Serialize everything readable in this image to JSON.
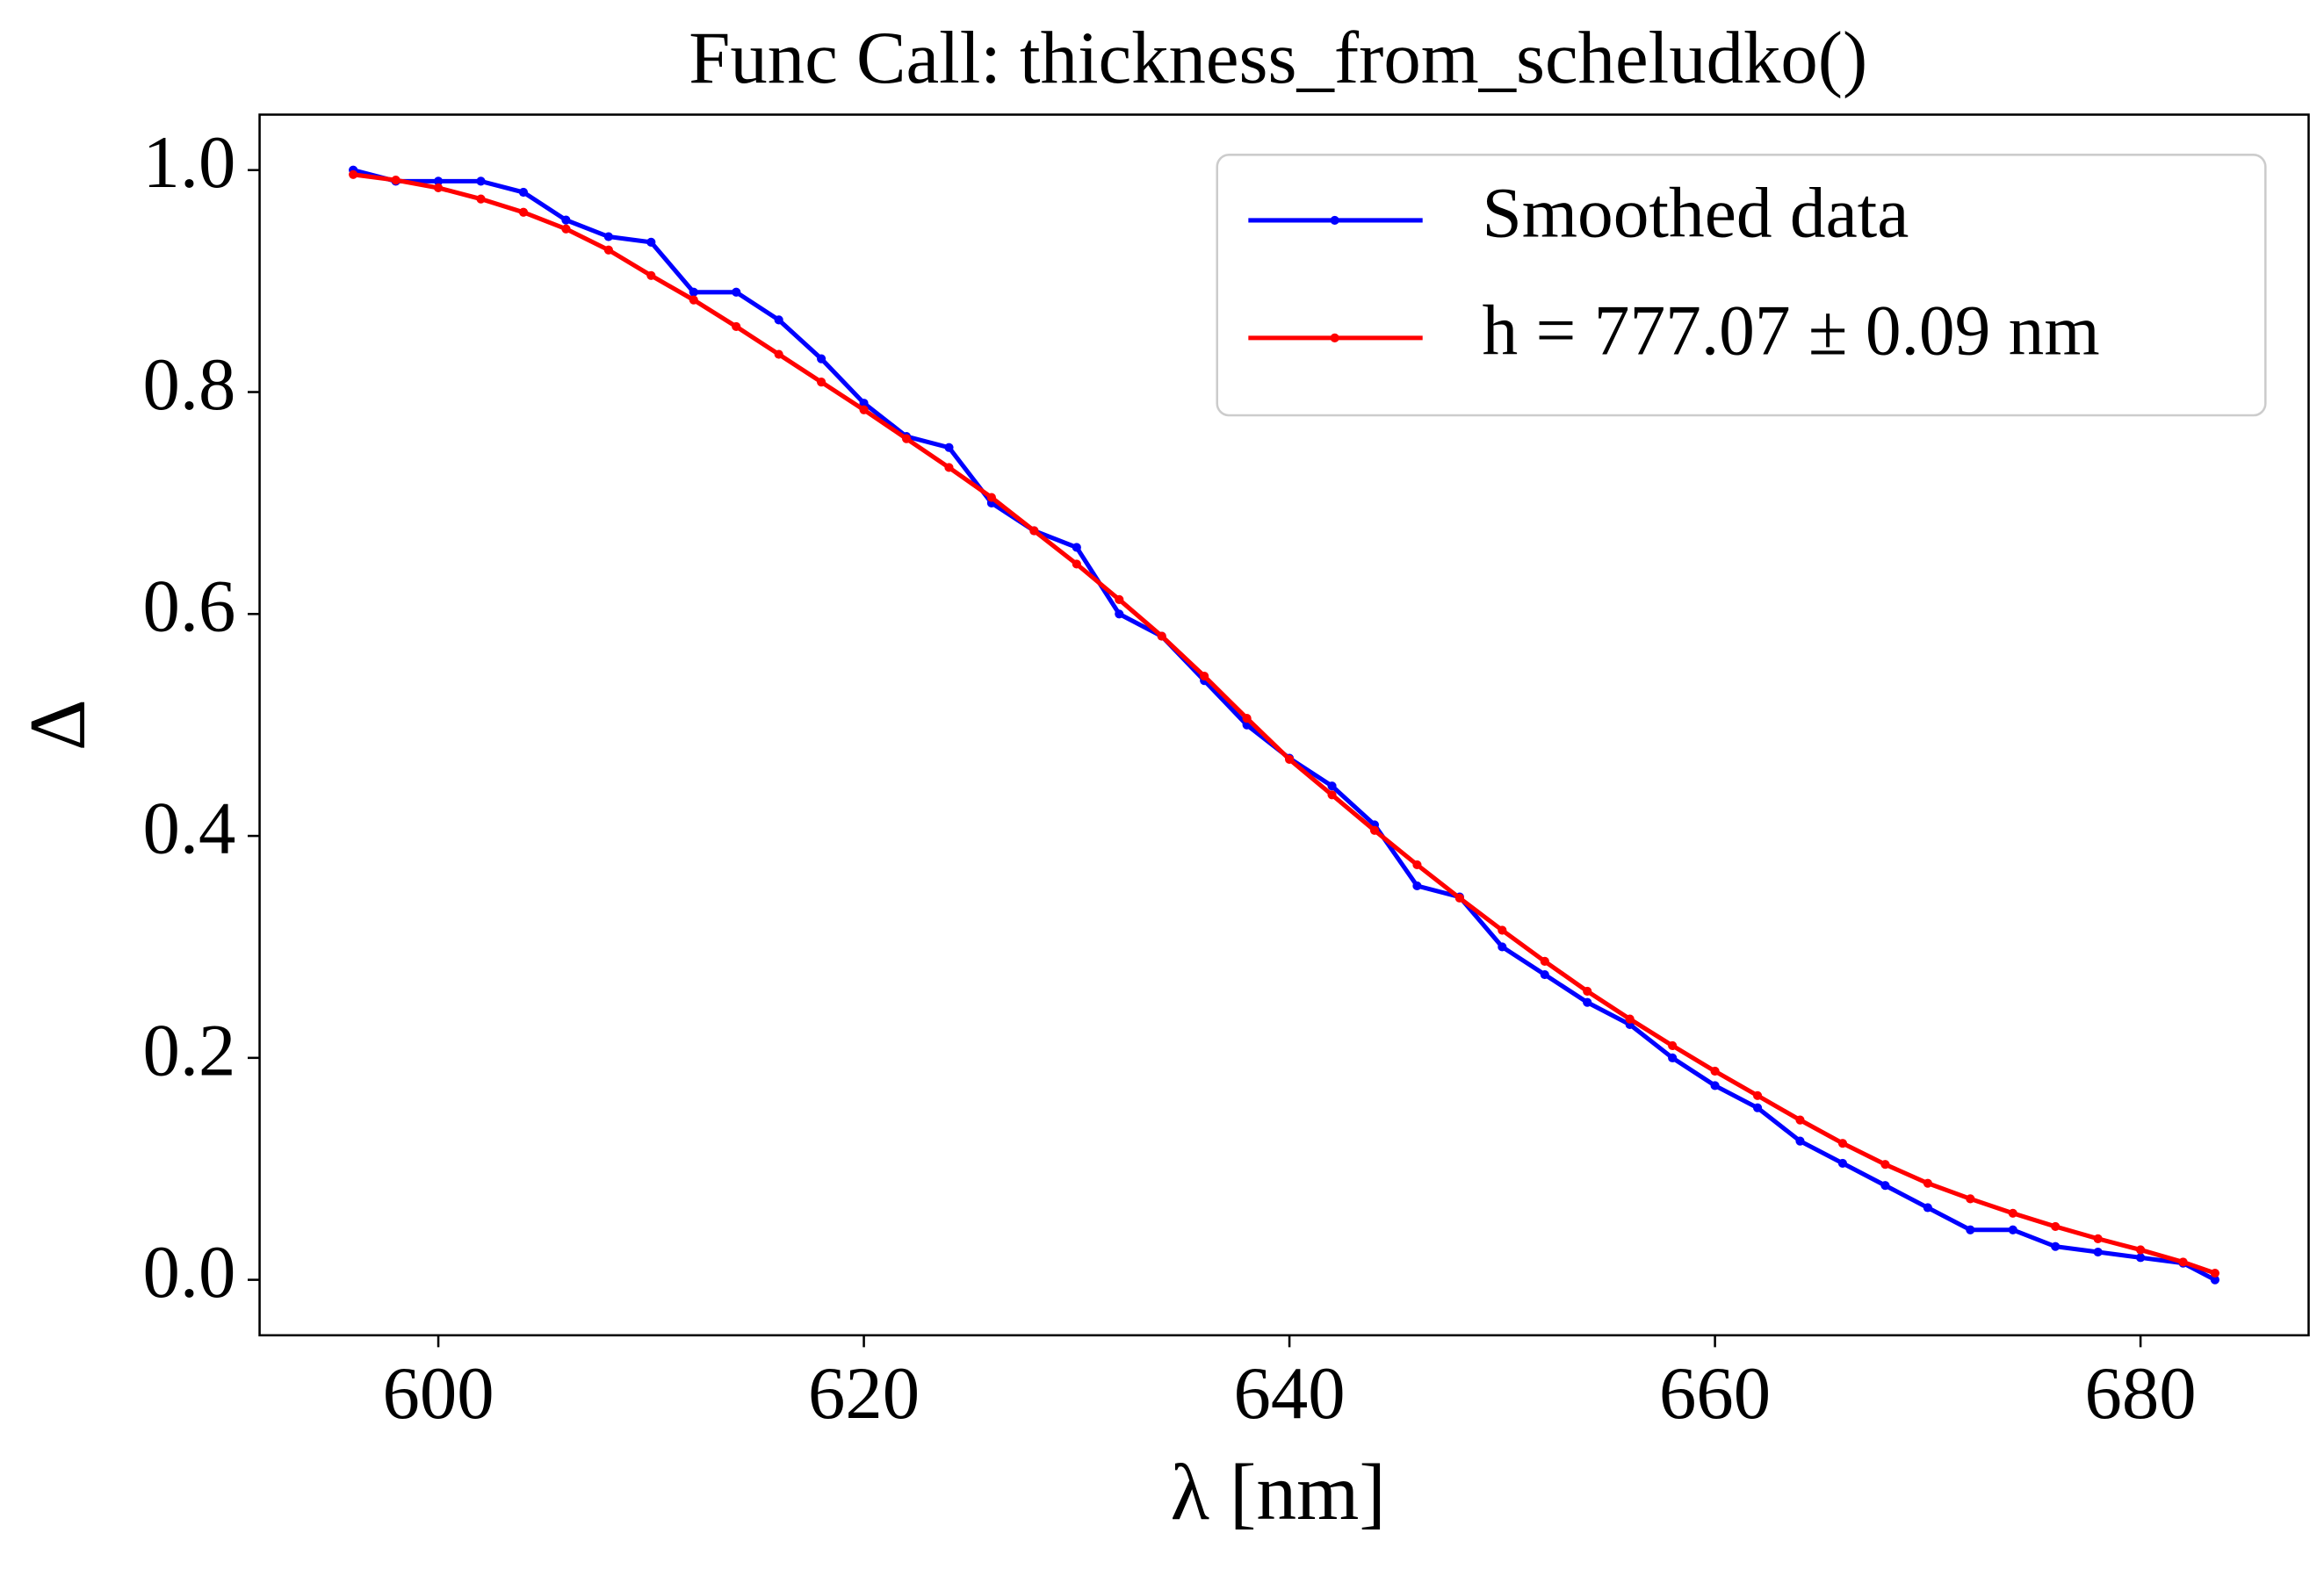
{
  "chart_data": {
    "type": "line",
    "title": "Func Call: thickness_from_scheludko()",
    "x_label": "λ [nm]",
    "y_label": "Δ",
    "x": [
      596,
      598,
      600,
      602,
      604,
      606,
      608,
      610,
      612,
      614,
      616,
      618,
      620,
      622,
      624,
      626,
      628,
      630,
      632,
      634,
      636,
      638,
      640,
      642,
      644,
      646,
      648,
      650,
      652,
      654,
      656,
      658,
      660,
      662,
      664,
      666,
      668,
      670,
      672,
      674,
      676,
      678,
      680,
      682,
      683.5
    ],
    "series": [
      {
        "name": "Smoothed data",
        "color": "#0000ff",
        "values": [
          1.0,
          0.99,
          0.99,
          0.99,
          0.98,
          0.955,
          0.94,
          0.935,
          0.89,
          0.89,
          0.865,
          0.83,
          0.79,
          0.76,
          0.75,
          0.7,
          0.675,
          0.66,
          0.6,
          0.58,
          0.54,
          0.5,
          0.47,
          0.445,
          0.41,
          0.355,
          0.345,
          0.3,
          0.275,
          0.25,
          0.23,
          0.2,
          0.175,
          0.155,
          0.125,
          0.105,
          0.085,
          0.065,
          0.045,
          0.045,
          0.03,
          0.025,
          0.02,
          0.015,
          0.0
        ]
      },
      {
        "name": "h = 777.07 ± 0.09 nm",
        "color": "#ff0000",
        "values": [
          0.996,
          0.991,
          0.984,
          0.974,
          0.962,
          0.947,
          0.928,
          0.905,
          0.883,
          0.859,
          0.834,
          0.809,
          0.784,
          0.758,
          0.732,
          0.705,
          0.675,
          0.645,
          0.613,
          0.58,
          0.544,
          0.506,
          0.469,
          0.437,
          0.405,
          0.374,
          0.344,
          0.315,
          0.287,
          0.26,
          0.235,
          0.211,
          0.188,
          0.166,
          0.144,
          0.123,
          0.104,
          0.087,
          0.073,
          0.06,
          0.048,
          0.037,
          0.027,
          0.016,
          0.006
        ]
      }
    ],
    "xlim": [
      591.6,
      687.9
    ],
    "xticks": [
      600,
      620,
      640,
      660,
      680
    ],
    "ylim": [
      -0.05,
      1.05
    ],
    "yticks": [
      {
        "value": 0,
        "label": "0.0"
      },
      0.2,
      0.4,
      0.6,
      0.8,
      {
        "value": 1,
        "label": "1.0"
      }
    ],
    "legend": "upper right",
    "grid": false
  }
}
